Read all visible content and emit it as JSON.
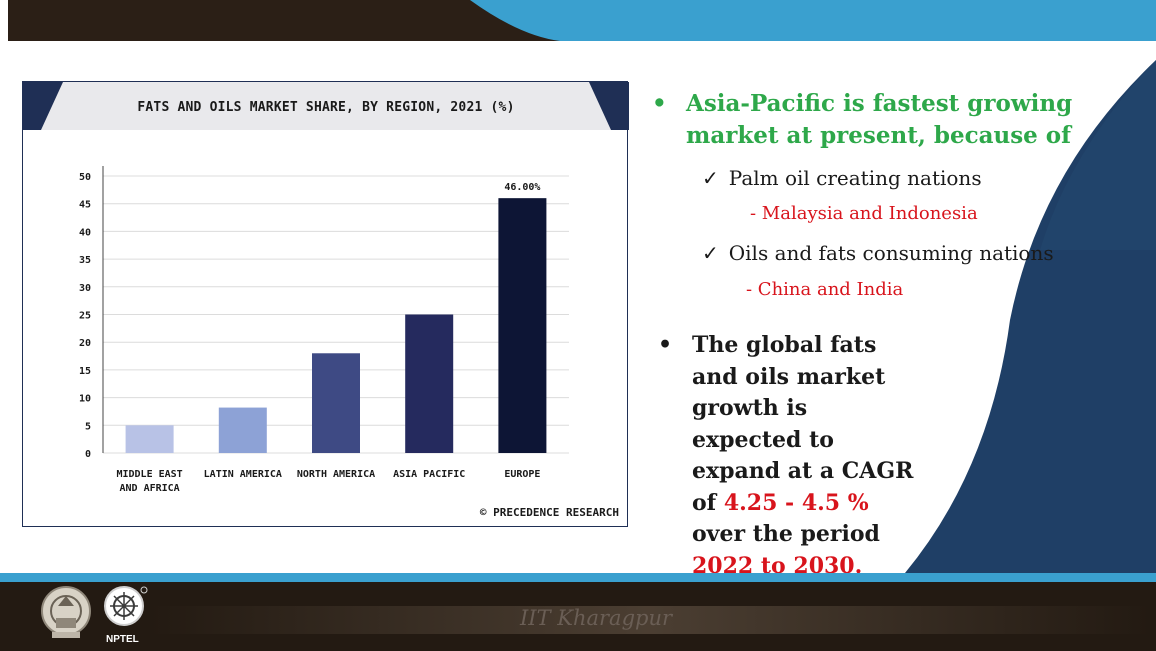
{
  "chart": {
    "title": "FATS AND OILS MARKET SHARE, BY  REGION, 2021 (%)",
    "source": "© PRECEDENCE RESEARCH"
  },
  "chart_data": {
    "type": "bar",
    "title": "FATS AND OILS MARKET SHARE, BY  REGION, 2021 (%)",
    "categories": [
      "MIDDLE EAST AND AFRICA",
      "LATIN AMERICA",
      "NORTH AMERICA",
      "ASIA PACIFIC",
      "EUROPE"
    ],
    "category_lines": [
      [
        "MIDDLE EAST",
        "AND AFRICA"
      ],
      [
        "LATIN AMERICA"
      ],
      [
        "NORTH AMERICA"
      ],
      [
        "ASIA PACIFIC"
      ],
      [
        "EUROPE"
      ]
    ],
    "values": [
      5,
      8.2,
      18,
      25,
      46
    ],
    "colors": [
      "#b8c2e6",
      "#8da2d6",
      "#3e4a84",
      "#252a5e",
      "#0d1535"
    ],
    "data_labels": [
      "",
      "",
      "",
      "",
      "46.00%"
    ],
    "yticks": [
      "50",
      "45",
      "40",
      "35",
      "30",
      "25",
      "20",
      "15",
      "10",
      "5",
      "0"
    ],
    "ylim": [
      0,
      50
    ],
    "grid": true
  },
  "text": {
    "bullet1": "Asia-Pacific is fastest growing market at present, because of",
    "sub1": "Palm oil creating nations",
    "sub1_note": "- Malaysia and Indonesia",
    "sub2": "Oils and fats consuming nations",
    "sub2_note": "- China and India",
    "b2_part1": "The global fats and oils market growth is expected to  expand at  a CAGR of",
    "b2_red1": "4.25 - 4.5 %",
    "b2_part2": " over the  period ",
    "b2_red2": "2022 to 2030."
  },
  "footer": {
    "institute": "IIT Kharagpur",
    "nptel": "NPTEL"
  },
  "colors": {
    "green": "#2ea84a",
    "red": "#d8141c",
    "navy": "#1f3f66",
    "accent_blue": "#3aa0cf"
  }
}
